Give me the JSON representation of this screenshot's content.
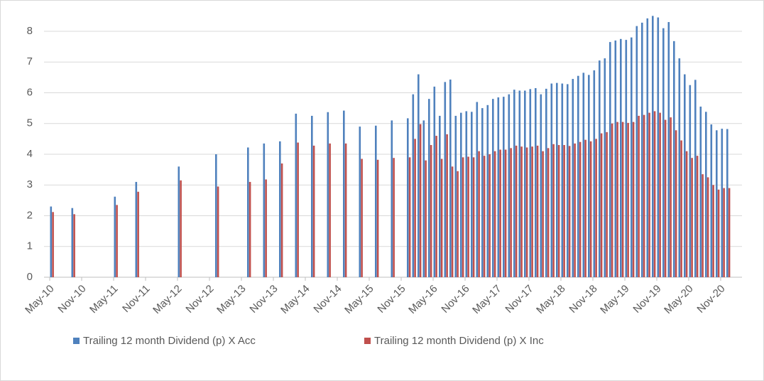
{
  "chart_data": {
    "type": "bar",
    "categories": [
      "May-10",
      null,
      null,
      null,
      null,
      null,
      "Nov-10",
      null,
      null,
      null,
      null,
      null,
      "May-11",
      null,
      null,
      null,
      null,
      null,
      "Nov-11",
      null,
      null,
      null,
      null,
      null,
      "May-12",
      null,
      null,
      null,
      null,
      null,
      "Nov-12",
      null,
      null,
      null,
      null,
      null,
      "May-13",
      null,
      null,
      null,
      null,
      null,
      "Nov-13",
      null,
      null,
      null,
      null,
      null,
      "May-14",
      null,
      null,
      null,
      null,
      null,
      "Nov-14",
      null,
      null,
      null,
      null,
      null,
      "May-15",
      null,
      null,
      null,
      null,
      null,
      "Nov-15",
      null,
      null,
      null,
      null,
      null,
      "May-16",
      null,
      null,
      null,
      null,
      null,
      "Nov-16",
      null,
      null,
      null,
      null,
      null,
      "May-17",
      null,
      null,
      null,
      null,
      null,
      "Nov-17",
      null,
      null,
      null,
      null,
      null,
      "May-18",
      null,
      null,
      null,
      null,
      null,
      "Nov-18",
      null,
      null,
      null,
      null,
      null,
      "May-19",
      null,
      null,
      null,
      null,
      null,
      "Nov-19",
      null,
      null,
      null,
      null,
      null,
      "May-20",
      null,
      null,
      null,
      null,
      null,
      "Nov-20",
      null
    ],
    "series": [
      {
        "name": "Trailing 12 month Dividend (p) X Acc",
        "color": "#4f81bd",
        "values": [
          2.3,
          null,
          null,
          null,
          2.25,
          null,
          null,
          null,
          null,
          null,
          null,
          null,
          2.62,
          null,
          null,
          null,
          3.1,
          null,
          null,
          null,
          null,
          null,
          null,
          null,
          3.6,
          null,
          null,
          null,
          null,
          null,
          null,
          4.0,
          null,
          null,
          null,
          null,
          null,
          4.22,
          null,
          null,
          4.35,
          null,
          null,
          4.42,
          null,
          null,
          5.32,
          null,
          null,
          5.25,
          null,
          null,
          5.37,
          null,
          null,
          5.42,
          null,
          null,
          4.9,
          null,
          null,
          4.93,
          null,
          null,
          5.1,
          null,
          null,
          5.17,
          5.95,
          6.6,
          5.1,
          5.8,
          6.2,
          5.25,
          6.35,
          6.43,
          5.25,
          5.35,
          5.4,
          5.38,
          5.7,
          5.5,
          5.6,
          5.8,
          5.85,
          5.87,
          5.95,
          6.1,
          6.07,
          6.07,
          6.12,
          6.15,
          5.95,
          6.13,
          6.3,
          6.32,
          6.3,
          6.28,
          6.45,
          6.55,
          6.65,
          6.58,
          6.73,
          7.05,
          7.12,
          7.65,
          7.7,
          7.75,
          7.72,
          7.8,
          8.17,
          8.28,
          8.42,
          8.5,
          8.45,
          8.1,
          8.3,
          7.68,
          7.12,
          6.6,
          6.25,
          6.42,
          5.55,
          5.38,
          4.97,
          4.78,
          4.83,
          4.82
        ]
      },
      {
        "name": "Trailing 12 month Dividend (p) X Inc",
        "color": "#c0504d",
        "values": [
          2.12,
          null,
          null,
          null,
          2.05,
          null,
          null,
          null,
          null,
          null,
          null,
          null,
          2.35,
          null,
          null,
          null,
          2.78,
          null,
          null,
          null,
          null,
          null,
          null,
          null,
          3.15,
          null,
          null,
          null,
          null,
          null,
          null,
          2.95,
          null,
          null,
          null,
          null,
          null,
          3.1,
          null,
          null,
          3.18,
          null,
          null,
          3.7,
          null,
          null,
          4.38,
          null,
          null,
          4.28,
          null,
          null,
          4.35,
          null,
          null,
          4.35,
          null,
          null,
          3.85,
          null,
          null,
          3.82,
          null,
          null,
          3.88,
          null,
          null,
          3.9,
          4.5,
          4.98,
          3.8,
          4.3,
          4.6,
          3.85,
          4.65,
          3.6,
          3.45,
          3.9,
          3.92,
          3.9,
          4.1,
          3.95,
          4.0,
          4.1,
          4.15,
          4.15,
          4.2,
          4.28,
          4.25,
          4.22,
          4.25,
          4.28,
          4.1,
          4.2,
          4.33,
          4.3,
          4.3,
          4.27,
          4.35,
          4.4,
          4.47,
          4.42,
          4.5,
          4.68,
          4.72,
          5.0,
          5.05,
          5.05,
          5.02,
          5.05,
          5.25,
          5.28,
          5.35,
          5.4,
          5.35,
          5.12,
          5.2,
          4.78,
          4.45,
          4.1,
          3.88,
          3.95,
          3.35,
          3.25,
          3.0,
          2.85,
          2.9,
          2.9
        ]
      }
    ],
    "ylim": [
      0,
      8
    ],
    "yticks": [
      0,
      1,
      2,
      3,
      4,
      5,
      6,
      7,
      8
    ],
    "grid": true
  }
}
